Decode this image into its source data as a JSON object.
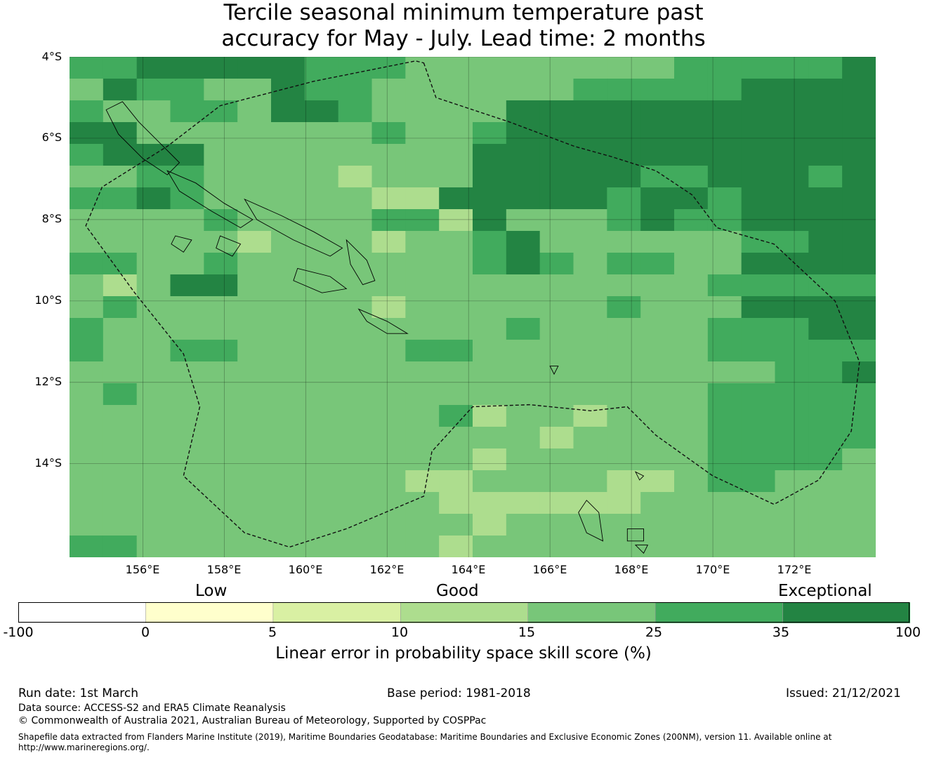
{
  "title_line1": "Tercile seasonal minimum temperature past",
  "title_line2": "accuracy for May - July. Lead time: 2 months",
  "map": {
    "lon_range": [
      154.2,
      174.0
    ],
    "lat_range": [
      -16.3,
      -4.0
    ],
    "lat_ticks": [
      {
        "value": -4,
        "label": "4°S"
      },
      {
        "value": -6,
        "label": "6°S"
      },
      {
        "value": -8,
        "label": "8°S"
      },
      {
        "value": -10,
        "label": "10°S"
      },
      {
        "value": -12,
        "label": "12°S"
      },
      {
        "value": -14,
        "label": "14°S"
      }
    ],
    "lon_ticks": [
      {
        "value": 156,
        "label": "156°E"
      },
      {
        "value": 158,
        "label": "158°E"
      },
      {
        "value": 160,
        "label": "160°E"
      },
      {
        "value": 162,
        "label": "162°E"
      },
      {
        "value": 164,
        "label": "164°E"
      },
      {
        "value": 166,
        "label": "166°E"
      },
      {
        "value": 168,
        "label": "168°E"
      },
      {
        "value": 170,
        "label": "170°E"
      },
      {
        "value": 172,
        "label": "172°E"
      }
    ],
    "colors": {
      "c1": "#ffffcc",
      "c2": "#d9f0a3",
      "c3": "#addd8e",
      "c4": "#78c679",
      "c5": "#41ab5d",
      "c6": "#238443"
    },
    "grid_cols": 24,
    "grid_rows": 23,
    "grid": [
      "556666655544444444555556",
      "465544655444444555556666",
      "544554665444466666666666",
      "664444444544566666666666",
      "566644444444666666666666",
      "445544443444666665566656",
      "556544444336666656656666",
      "444454444553644456556666",
      "444443444344564444445566",
      "554454444444565455446666",
      "434664444444444444455555",
      "454444444344444454446666",
      "544444444444454444455566",
      "544554444455444444455555",
      "444444444444444444444556",
      "454444444444444444455555",
      "444444444445344344455555",
      "444444444444443444455555",
      "444444444444344444455554",
      "444444444433444433455444",
      "444444444443333334444444",
      "444444444444344444444444",
      "554444444443444444444444"
    ],
    "eez_boundary": [
      [
        162.9,
        -4.15
      ],
      [
        163.2,
        -5.0
      ],
      [
        165.0,
        -5.6
      ],
      [
        166.6,
        -6.2
      ],
      [
        167.5,
        -6.45
      ],
      [
        168.6,
        -6.8
      ],
      [
        169.5,
        -7.4
      ],
      [
        170.1,
        -8.2
      ],
      [
        171.5,
        -8.6
      ],
      [
        173.0,
        -10.0
      ],
      [
        173.6,
        -11.5
      ],
      [
        173.4,
        -13.2
      ],
      [
        172.6,
        -14.4
      ],
      [
        171.5,
        -15.0
      ],
      [
        170.0,
        -14.3
      ],
      [
        168.6,
        -13.3
      ],
      [
        167.9,
        -12.6
      ],
      [
        167.0,
        -12.7
      ],
      [
        165.5,
        -12.55
      ],
      [
        164.1,
        -12.6
      ],
      [
        163.1,
        -13.7
      ],
      [
        162.9,
        -14.8
      ],
      [
        161.0,
        -15.6
      ],
      [
        159.6,
        -16.05
      ],
      [
        158.5,
        -15.7
      ],
      [
        157.0,
        -14.3
      ],
      [
        157.4,
        -12.6
      ],
      [
        157.0,
        -11.3
      ],
      [
        155.8,
        -9.8
      ],
      [
        154.6,
        -8.15
      ],
      [
        155.0,
        -7.2
      ],
      [
        156.6,
        -6.2
      ],
      [
        157.9,
        -5.2
      ],
      [
        160.2,
        -4.6
      ],
      [
        162.7,
        -4.1
      ]
    ],
    "islands": [
      [
        [
          155.5,
          -5.1
        ],
        [
          155.9,
          -5.6
        ],
        [
          156.4,
          -6.1
        ],
        [
          156.9,
          -6.6
        ],
        [
          156.6,
          -6.9
        ],
        [
          156.0,
          -6.5
        ],
        [
          155.4,
          -5.9
        ],
        [
          155.1,
          -5.3
        ]
      ],
      [
        [
          156.6,
          -6.8
        ],
        [
          157.3,
          -7.1
        ],
        [
          158.0,
          -7.6
        ],
        [
          158.7,
          -8.0
        ],
        [
          158.4,
          -8.2
        ],
        [
          157.7,
          -7.8
        ],
        [
          156.9,
          -7.3
        ]
      ],
      [
        [
          158.5,
          -7.5
        ],
        [
          159.4,
          -7.9
        ],
        [
          160.2,
          -8.3
        ],
        [
          160.9,
          -8.7
        ],
        [
          160.6,
          -8.9
        ],
        [
          159.7,
          -8.5
        ],
        [
          158.8,
          -8.0
        ]
      ],
      [
        [
          159.8,
          -9.2
        ],
        [
          160.6,
          -9.4
        ],
        [
          161.0,
          -9.7
        ],
        [
          160.4,
          -9.8
        ],
        [
          159.7,
          -9.5
        ]
      ],
      [
        [
          161.0,
          -8.5
        ],
        [
          161.5,
          -9.0
        ],
        [
          161.7,
          -9.5
        ],
        [
          161.4,
          -9.6
        ],
        [
          161.1,
          -9.1
        ]
      ],
      [
        [
          161.3,
          -10.2
        ],
        [
          162.0,
          -10.5
        ],
        [
          162.5,
          -10.8
        ],
        [
          162.0,
          -10.8
        ],
        [
          161.5,
          -10.5
        ]
      ],
      [
        [
          157.9,
          -8.4
        ],
        [
          158.4,
          -8.6
        ],
        [
          158.2,
          -8.9
        ],
        [
          157.8,
          -8.7
        ]
      ],
      [
        [
          156.8,
          -8.4
        ],
        [
          157.2,
          -8.5
        ],
        [
          157.0,
          -8.8
        ],
        [
          156.7,
          -8.6
        ]
      ],
      [
        [
          166.0,
          -11.6
        ],
        [
          166.2,
          -11.6
        ],
        [
          166.1,
          -11.8
        ]
      ],
      [
        [
          166.9,
          -14.9
        ],
        [
          167.2,
          -15.2
        ],
        [
          167.3,
          -15.9
        ],
        [
          166.9,
          -15.7
        ],
        [
          166.7,
          -15.2
        ]
      ],
      [
        [
          167.9,
          -15.6
        ],
        [
          168.3,
          -15.6
        ],
        [
          168.3,
          -15.9
        ],
        [
          167.9,
          -15.9
        ]
      ],
      [
        [
          168.1,
          -16.0
        ],
        [
          168.4,
          -16.0
        ],
        [
          168.3,
          -16.2
        ]
      ],
      [
        [
          168.1,
          -14.2
        ],
        [
          168.3,
          -14.3
        ],
        [
          168.2,
          -14.4
        ]
      ]
    ]
  },
  "colorbar": {
    "category_low": "Low",
    "category_good": "Good",
    "category_exceptional": "Exceptional",
    "ticks": [
      "-100",
      "0",
      "5",
      "10",
      "15",
      "25",
      "35",
      "100"
    ],
    "segment_colors": [
      "#ffffff",
      "#ffffcc",
      "#d9f0a3",
      "#addd8e",
      "#78c679",
      "#41ab5d",
      "#238443"
    ],
    "title": "Linear error in probability space skill score (%)"
  },
  "footer": {
    "run_date": "Run date: 1st March",
    "base_period": "Base period: 1981-2018",
    "issued": "Issued: 21/12/2021",
    "data_source": "Data source: ACCESS-S2 and ERA5 Climate Reanalysis",
    "copyright": "© Commonwealth of Australia 2021, Australian Bureau of Meteorology, Supported by COSPPac",
    "shapefile_note": "Shapefile data extracted from Flanders Marine Institute (2019), Maritime Boundaries Geodatabase: Maritime Boundaries and Exclusive Economic Zones (200NM), version 11. Available online at http://www.marineregions.org/."
  }
}
